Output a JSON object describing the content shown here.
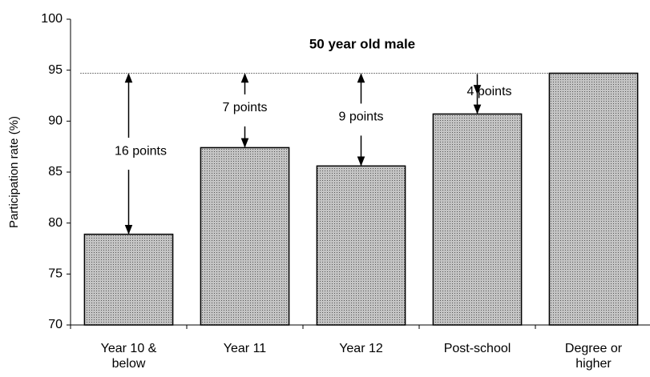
{
  "chart_data": {
    "type": "bar",
    "title": "50 year old male",
    "y_label": "Participation rate (%)",
    "categories": [
      "Year 10 & below",
      "Year 11",
      "Year 12",
      "Post-school",
      "Degree or higher"
    ],
    "values": [
      78.9,
      87.4,
      85.6,
      90.7,
      94.7
    ],
    "color": "#c4c4c4",
    "annotations": [
      "16 points",
      "7 points",
      "9 points",
      "4 points"
    ],
    "ylim": [
      70,
      100
    ],
    "yticks": [
      70,
      75,
      80,
      85,
      90,
      95,
      100
    ],
    "grid": false
  }
}
